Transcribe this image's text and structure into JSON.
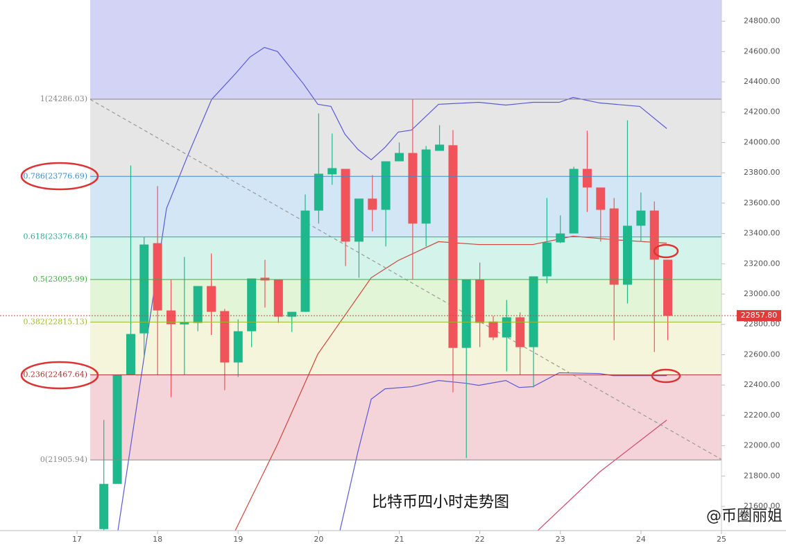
{
  "chart_data": {
    "type": "candlestick",
    "annotation": "比特币四小时走势图",
    "watermark": "@币圈丽姐",
    "xlim": [
      16.044,
      25
    ],
    "xticks": [
      17,
      18,
      19,
      20,
      21,
      22,
      23,
      24,
      25
    ],
    "ylim": [
      21440,
      24940
    ],
    "yticks": [
      {
        "value": 21600,
        "label": "21600.00"
      },
      {
        "value": 21800,
        "label": "21800.00"
      },
      {
        "value": 22000,
        "label": "22000.00"
      },
      {
        "value": 22200,
        "label": "22200.00"
      },
      {
        "value": 22400,
        "label": "22400.00"
      },
      {
        "value": 22600,
        "label": "22600.00"
      },
      {
        "value": 22800,
        "label": "22800.00"
      },
      {
        "value": 23000,
        "label": "23000.00"
      },
      {
        "value": 23200,
        "label": "23200.00"
      },
      {
        "value": 23400,
        "label": "23400.00"
      },
      {
        "value": 23600,
        "label": "23600.00"
      },
      {
        "value": 23800,
        "label": "23800.00"
      },
      {
        "value": 24000,
        "label": "24000.00"
      },
      {
        "value": 24200,
        "label": "24200.00"
      },
      {
        "value": 24400,
        "label": "24400.00"
      },
      {
        "value": 24600,
        "label": "24600.00"
      },
      {
        "value": 24800,
        "label": "24800.00"
      }
    ],
    "up_color": "#1fb88c",
    "down_color": "#f0545a",
    "x": [
      17.333,
      17.5,
      17.667,
      17.833,
      18,
      18.167,
      18.333,
      18.5,
      18.667,
      18.833,
      19,
      19.167,
      19.333,
      19.5,
      19.667,
      19.833,
      20,
      20.167,
      20.333,
      20.5,
      20.667,
      20.833,
      21,
      21.167,
      21.333,
      21.5,
      21.667,
      21.833,
      22,
      22.167,
      22.333,
      22.5,
      22.667,
      22.833,
      23,
      23.167,
      23.333,
      23.5,
      23.667,
      23.833,
      24,
      24.167,
      24.333
    ],
    "open": [
      21450,
      21748,
      22467,
      22741,
      23336,
      22892,
      22800,
      22810,
      23053,
      22888,
      22549,
      22755,
      23108,
      23094,
      22851,
      22883,
      23551,
      23790,
      23826,
      23346,
      23630,
      23556,
      23876,
      23931,
      23465,
      23945,
      23982,
      22645,
      23098,
      22819,
      22714,
      22847,
      22650,
      23117,
      23341,
      23400,
      23826,
      23703,
      23565,
      23062,
      23451,
      23551,
      23227
    ],
    "high": [
      22170,
      22467,
      23849,
      23376,
      23712,
      23098,
      23245,
      23053,
      23268,
      22902,
      22833,
      23103,
      23226,
      23094,
      22883,
      23657,
      24192,
      24059,
      23826,
      23630,
      23785,
      23876,
      24000,
      24288,
      23977,
      24114,
      24082,
      23098,
      23208,
      22856,
      22961,
      22879,
      23117,
      23634,
      23519,
      23840,
      24078,
      23703,
      23634,
      24146,
      23670,
      23611,
      23227
    ],
    "low": [
      21440,
      21748,
      22467,
      22581,
      22467,
      22320,
      22467,
      22755,
      22730,
      22366,
      22453,
      22650,
      22911,
      22810,
      22751,
      22883,
      23465,
      23721,
      23185,
      23108,
      23414,
      23314,
      23876,
      23098,
      23314,
      23945,
      22352,
      21918,
      22650,
      22696,
      22490,
      22467,
      22385,
      23071,
      23336,
      23400,
      23542,
      23346,
      22696,
      22938,
      23346,
      22618,
      22696
    ],
    "close": [
      21748,
      22467,
      22737,
      23327,
      22892,
      22801,
      22815,
      23053,
      22883,
      22549,
      22755,
      23103,
      23090,
      22851,
      22883,
      23551,
      23794,
      23831,
      23346,
      23630,
      23556,
      23876,
      23931,
      23465,
      23954,
      23986,
      22645,
      23098,
      22810,
      22714,
      22847,
      22650,
      23117,
      23341,
      23400,
      23826,
      23703,
      23556,
      23062,
      23451,
      23551,
      23227,
      22856
    ],
    "fib_levels": [
      {
        "value": 24286.03,
        "label": "1(24286.03)"
      },
      {
        "value": 23776.69,
        "label": "0.786(23776.69)"
      },
      {
        "value": 23376.84,
        "label": "0.618(23376.84)"
      },
      {
        "value": 23095.99,
        "label": "0.5(23095.99)"
      },
      {
        "value": 22815.13,
        "label": "0.382(22815.13)"
      },
      {
        "value": 22467.64,
        "label": "0.236(22467.64)"
      },
      {
        "value": 21905.94,
        "label": "0(21905.94)"
      }
    ],
    "fib_colors": [
      "#888888",
      "#3b8ccc",
      "#2aae90",
      "#45a845",
      "#9bbb2e",
      "#b03030",
      "#888888"
    ],
    "band_colors": [
      "#d3d3f6",
      "#e6e6e6",
      "#d3e6f5",
      "#d4f3ea",
      "#e2f5d6",
      "#f5f5dc",
      "#f4d4d8"
    ],
    "price": {
      "value": 22857.8,
      "label": "22857.80",
      "color": "#e03c3c"
    },
    "trend_line": {
      "x": [
        17.164,
        25
      ],
      "values": [
        24284,
        21909
      ]
    },
    "lines": [
      {
        "name": "upper",
        "color": "#5a5ad6",
        "x": [
          17.508,
          18.111,
          18.37,
          18.671,
          18.973,
          19.145,
          19.326,
          19.489,
          19.808,
          19.989,
          20.152,
          20.325,
          20.488,
          20.652,
          20.824,
          20.988,
          21.152,
          21.488,
          21.987,
          22.323,
          22.659,
          22.986,
          23.158,
          23.486,
          23.985,
          24.321
        ],
        "values": [
          21440,
          23565,
          23908,
          24284,
          24458,
          24563,
          24627,
          24600,
          24389,
          24252,
          24238,
          24055,
          23954,
          23886,
          23968,
          24069,
          24082,
          24252,
          24265,
          24247,
          24265,
          24265,
          24297,
          24261,
          24238,
          24092
        ]
      },
      {
        "name": "lower",
        "color": "#5a5ad6",
        "x": [
          20.264,
          20.488,
          20.652,
          20.824,
          21.152,
          21.488,
          21.823,
          21.987,
          22.323,
          22.487,
          22.659,
          22.986,
          23.486,
          23.658,
          24.321
        ],
        "values": [
          21440,
          21963,
          22307,
          22375,
          22389,
          22430,
          22412,
          22398,
          22430,
          22384,
          22389,
          22481,
          22476,
          22462,
          22462
        ]
      },
      {
        "name": "ma",
        "color": "#d0453c",
        "x": [
          18.964,
          19.489,
          19.989,
          20.652,
          20.988,
          21.488,
          21.987,
          22.659,
          23.158,
          23.658,
          24.321
        ],
        "values": [
          21440,
          22009,
          22604,
          23108,
          23222,
          23346,
          23327,
          23327,
          23382,
          23359,
          23336
        ]
      },
      {
        "name": "ma-long",
        "color": "#d04a6a",
        "x": [
          22.719,
          23.486,
          24.321
        ],
        "values": [
          21440,
          21826,
          22169
        ]
      }
    ]
  }
}
